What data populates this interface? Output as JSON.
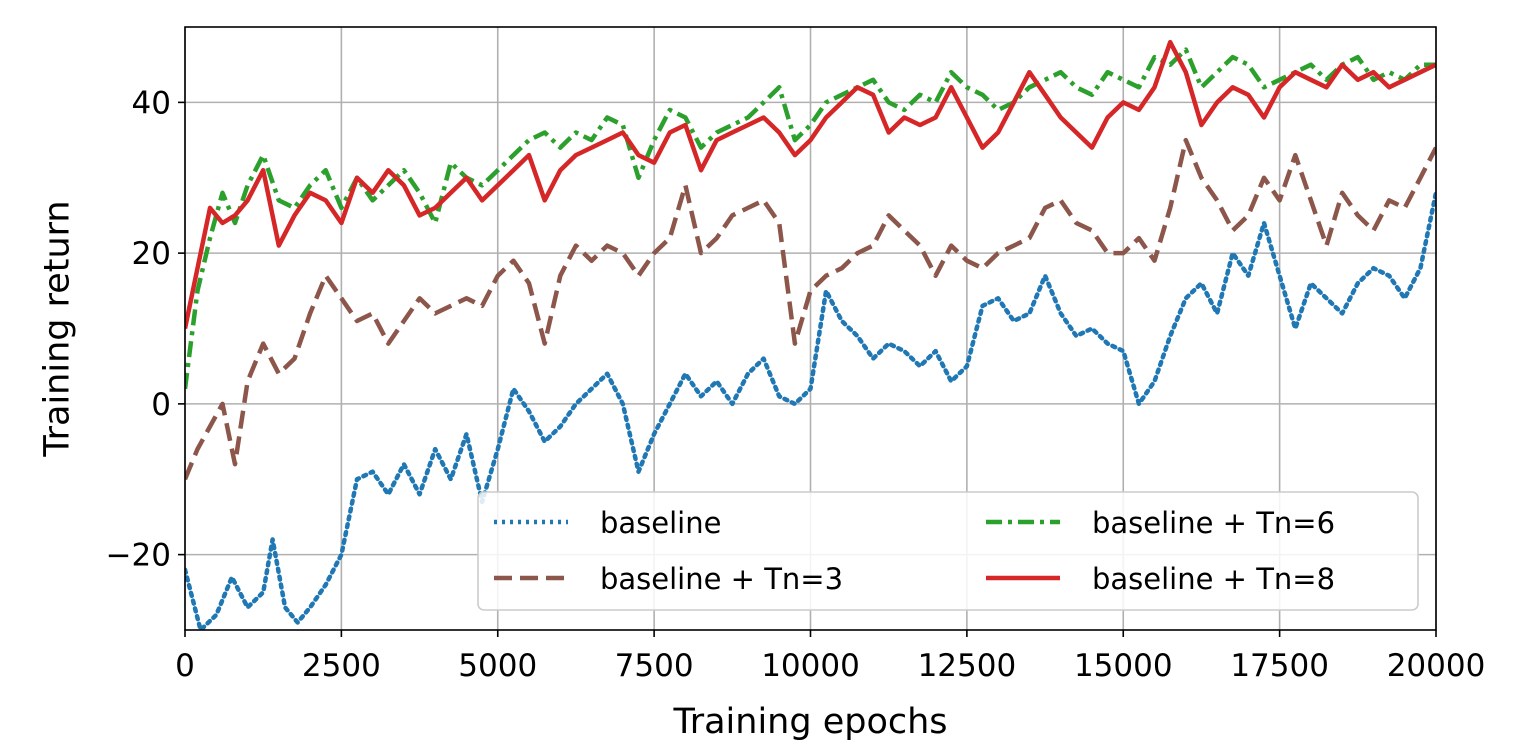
{
  "chart_data": {
    "type": "line",
    "title": "",
    "xlabel": "Training epochs",
    "ylabel": "Training return",
    "xlim": [
      0,
      20000
    ],
    "ylim": [
      -30,
      50
    ],
    "xticks": [
      0,
      2500,
      5000,
      7500,
      10000,
      12500,
      15000,
      17500,
      20000
    ],
    "xtick_labels": [
      "0",
      "2500",
      "5000",
      "7500",
      "10000",
      "12500",
      "15000",
      "17500",
      "20000"
    ],
    "yticks": [
      -20,
      0,
      20,
      40
    ],
    "ytick_labels": [
      "−20",
      "0",
      "20",
      "40"
    ],
    "grid": true,
    "legend": {
      "placement": "lower-right",
      "columns": 2,
      "order": [
        "baseline",
        "baseline + Tn=3",
        "baseline + Tn=6",
        "baseline + Tn=8"
      ]
    },
    "series": [
      {
        "name": "baseline",
        "color": "#1f77b4",
        "style": "dotted",
        "x": [
          0,
          250,
          500,
          750,
          1000,
          1250,
          1400,
          1600,
          1800,
          2000,
          2250,
          2500,
          2750,
          3000,
          3250,
          3500,
          3750,
          4000,
          4250,
          4500,
          4750,
          5000,
          5250,
          5500,
          5750,
          6000,
          6250,
          6500,
          6750,
          7000,
          7250,
          7500,
          7750,
          8000,
          8250,
          8500,
          8750,
          9000,
          9250,
          9500,
          9750,
          10000,
          10250,
          10500,
          10750,
          11000,
          11250,
          11500,
          11750,
          12000,
          12250,
          12500,
          12750,
          13000,
          13250,
          13500,
          13750,
          14000,
          14250,
          14500,
          14750,
          15000,
          15250,
          15500,
          15750,
          16000,
          16250,
          16500,
          16750,
          17000,
          17250,
          17500,
          17750,
          18000,
          18250,
          18500,
          18750,
          19000,
          19250,
          19500,
          19750,
          20000
        ],
        "y": [
          -22,
          -30,
          -28,
          -23,
          -27,
          -25,
          -18,
          -27,
          -29,
          -27,
          -24,
          -20,
          -10,
          -9,
          -12,
          -8,
          -12,
          -6,
          -10,
          -4,
          -13,
          -6,
          2,
          -1,
          -5,
          -3,
          0,
          2,
          4,
          0,
          -9,
          -4,
          0,
          4,
          1,
          3,
          0,
          4,
          6,
          1,
          0,
          2,
          15,
          11,
          9,
          6,
          8,
          7,
          5,
          7,
          3,
          5,
          13,
          14,
          11,
          12,
          17,
          12,
          9,
          10,
          8,
          7,
          0,
          3,
          9,
          14,
          16,
          12,
          20,
          17,
          24,
          17,
          10,
          16,
          14,
          12,
          16,
          18,
          17,
          14,
          18,
          28
        ]
      },
      {
        "name": "baseline + Tn=3",
        "color": "#8c564b",
        "style": "dashed",
        "x": [
          0,
          200,
          400,
          600,
          800,
          1000,
          1250,
          1500,
          1750,
          2000,
          2250,
          2500,
          2750,
          3000,
          3250,
          3500,
          3750,
          4000,
          4250,
          4500,
          4750,
          5000,
          5250,
          5500,
          5750,
          6000,
          6250,
          6500,
          6750,
          7000,
          7250,
          7500,
          7750,
          8000,
          8250,
          8500,
          8750,
          9000,
          9250,
          9500,
          9750,
          10000,
          10250,
          10500,
          10750,
          11000,
          11250,
          11500,
          11750,
          12000,
          12250,
          12500,
          12750,
          13000,
          13250,
          13500,
          13750,
          14000,
          14250,
          14500,
          14750,
          15000,
          15250,
          15500,
          15750,
          16000,
          16250,
          16500,
          16750,
          17000,
          17250,
          17500,
          17750,
          18000,
          18250,
          18500,
          18750,
          19000,
          19250,
          19500,
          19750,
          20000
        ],
        "y": [
          -10,
          -6,
          -3,
          0,
          -8,
          3,
          8,
          4,
          6,
          12,
          17,
          14,
          11,
          12,
          8,
          11,
          14,
          12,
          13,
          14,
          13,
          17,
          19,
          16,
          8,
          17,
          21,
          19,
          21,
          20,
          17,
          20,
          22,
          29,
          20,
          22,
          25,
          26,
          27,
          24,
          8,
          15,
          17,
          18,
          20,
          21,
          25,
          23,
          21,
          17,
          21,
          19,
          18,
          20,
          21,
          22,
          26,
          27,
          24,
          23,
          20,
          20,
          22,
          19,
          26,
          35,
          30,
          27,
          23,
          25,
          30,
          27,
          33,
          27,
          21,
          28,
          25,
          23,
          27,
          26,
          30,
          34
        ]
      },
      {
        "name": "baseline + Tn=6",
        "color": "#2ca02c",
        "style": "dashdot",
        "x": [
          0,
          200,
          400,
          600,
          800,
          1000,
          1250,
          1500,
          1750,
          2000,
          2250,
          2500,
          2750,
          3000,
          3250,
          3500,
          3750,
          4000,
          4250,
          4500,
          4750,
          5000,
          5250,
          5500,
          5750,
          6000,
          6250,
          6500,
          6750,
          7000,
          7250,
          7500,
          7750,
          8000,
          8250,
          8500,
          8750,
          9000,
          9250,
          9500,
          9750,
          10000,
          10250,
          10500,
          10750,
          11000,
          11250,
          11500,
          11750,
          12000,
          12250,
          12500,
          12750,
          13000,
          13250,
          13500,
          13750,
          14000,
          14250,
          14500,
          14750,
          15000,
          15250,
          15500,
          15750,
          16000,
          16250,
          16500,
          16750,
          17000,
          17250,
          17500,
          17750,
          18000,
          18250,
          18500,
          18750,
          19000,
          19250,
          19500,
          19750,
          20000
        ],
        "y": [
          2,
          15,
          22,
          28,
          24,
          29,
          33,
          27,
          26,
          29,
          31,
          26,
          30,
          27,
          29,
          31,
          28,
          24,
          32,
          30,
          29,
          31,
          33,
          35,
          36,
          34,
          36,
          35,
          38,
          37,
          30,
          35,
          39,
          38,
          34,
          36,
          37,
          38,
          40,
          42,
          35,
          37,
          40,
          41,
          42,
          43,
          40,
          39,
          41,
          40,
          44,
          42,
          41,
          39,
          40,
          42,
          43,
          44,
          42,
          41,
          44,
          43,
          42,
          46,
          45,
          47,
          42,
          44,
          46,
          45,
          42,
          43,
          44,
          45,
          43,
          45,
          46,
          43,
          44,
          43,
          45,
          45
        ]
      },
      {
        "name": "baseline + Tn=8",
        "color": "#d62728",
        "style": "solid",
        "x": [
          0,
          200,
          400,
          600,
          800,
          1000,
          1250,
          1500,
          1750,
          2000,
          2250,
          2500,
          2750,
          3000,
          3250,
          3500,
          3750,
          4000,
          4250,
          4500,
          4750,
          5000,
          5250,
          5500,
          5750,
          6000,
          6250,
          6500,
          6750,
          7000,
          7250,
          7500,
          7750,
          8000,
          8250,
          8500,
          8750,
          9000,
          9250,
          9500,
          9750,
          10000,
          10250,
          10500,
          10750,
          11000,
          11250,
          11500,
          11750,
          12000,
          12250,
          12500,
          12750,
          13000,
          13250,
          13500,
          13750,
          14000,
          14250,
          14500,
          14750,
          15000,
          15250,
          15500,
          15750,
          16000,
          16250,
          16500,
          16750,
          17000,
          17250,
          17500,
          17750,
          18000,
          18250,
          18500,
          18750,
          19000,
          19250,
          19500,
          19750,
          20000
        ],
        "y": [
          10,
          18,
          26,
          24,
          25,
          27,
          31,
          21,
          25,
          28,
          27,
          24,
          30,
          28,
          31,
          29,
          25,
          26,
          28,
          30,
          27,
          29,
          31,
          33,
          27,
          31,
          33,
          34,
          35,
          36,
          33,
          32,
          36,
          37,
          31,
          35,
          36,
          37,
          38,
          36,
          33,
          35,
          38,
          40,
          42,
          41,
          36,
          38,
          37,
          38,
          42,
          38,
          34,
          36,
          40,
          44,
          41,
          38,
          36,
          34,
          38,
          40,
          39,
          42,
          48,
          44,
          37,
          40,
          42,
          41,
          38,
          42,
          44,
          43,
          42,
          45,
          43,
          44,
          42,
          43,
          44,
          45
        ]
      }
    ]
  }
}
